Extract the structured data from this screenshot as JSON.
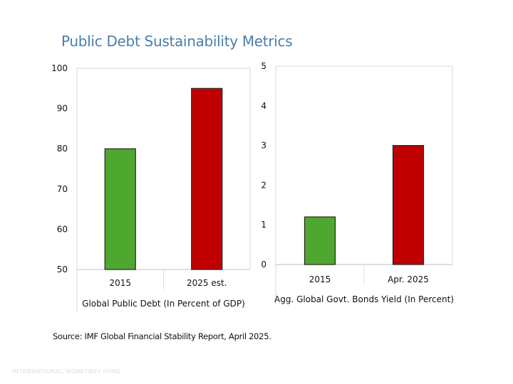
{
  "title": "Public Debt Sustainability Metrics",
  "source": "Source: IMF Global Financial Stability Report, April 2025.",
  "footer": "INTERNATIONAL MONETARY FUND",
  "chart_data": [
    {
      "type": "bar",
      "title": "",
      "xlabel": "Global Public Debt (In Percent of GDP)",
      "ylabel": "",
      "categories": [
        "2015",
        "2025 est."
      ],
      "values": [
        80,
        95
      ],
      "colors": [
        "#4ea72e",
        "#c00000"
      ],
      "ylim": [
        50,
        100
      ],
      "yticks": [
        50,
        60,
        70,
        80,
        90,
        100
      ],
      "grid": false,
      "legend": "none"
    },
    {
      "type": "bar",
      "title": "",
      "xlabel": "Agg. Global Govt. Bonds Yield (In Percent)",
      "ylabel": "",
      "categories": [
        "2015",
        "Apr. 2025"
      ],
      "values": [
        1.2,
        3
      ],
      "colors": [
        "#4ea72e",
        "#c00000"
      ],
      "ylim": [
        0,
        5
      ],
      "yticks": [
        0,
        1,
        2,
        3,
        4,
        5
      ],
      "grid": false,
      "legend": "none"
    }
  ]
}
